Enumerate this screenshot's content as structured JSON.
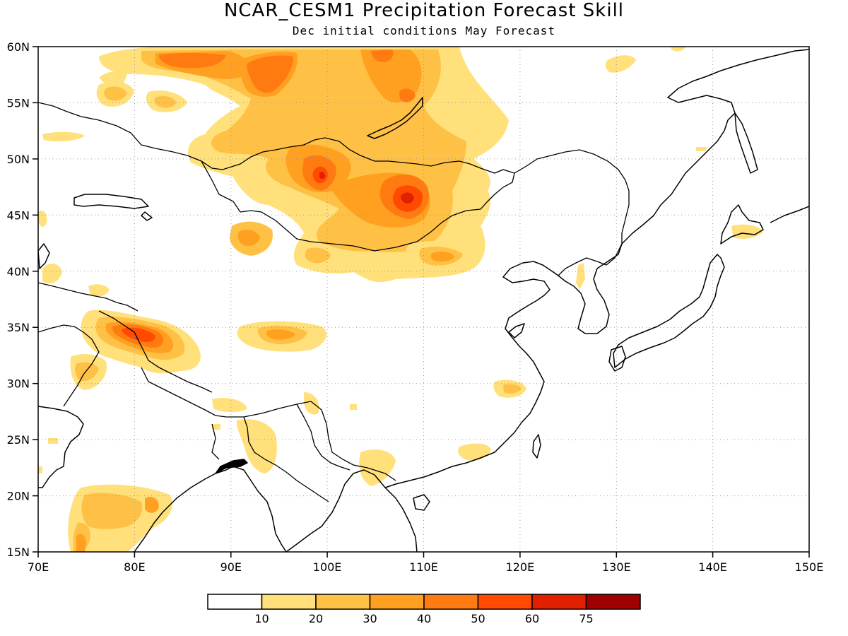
{
  "title": "NCAR_CESM1 Precipitation Forecast Skill",
  "subtitle": "Dec initial conditions   May Forecast",
  "map": {
    "type": "filled-contour map",
    "lon_range": [
      70,
      150
    ],
    "lat_range": [
      15,
      60
    ],
    "x_ticks": [
      "70E",
      "80E",
      "90E",
      "100E",
      "110E",
      "120E",
      "130E",
      "140E",
      "150E"
    ],
    "y_ticks": [
      "15N",
      "20N",
      "25N",
      "30N",
      "35N",
      "40N",
      "45N",
      "50N",
      "55N",
      "60N"
    ],
    "gridlines": "dotted"
  },
  "colorbar": {
    "labels": [
      "10",
      "20",
      "30",
      "40",
      "50",
      "60",
      "75"
    ],
    "colors": [
      "#ffffff",
      "#ffe07a",
      "#ffc145",
      "#ffa020",
      "#ff7a10",
      "#ff4a00",
      "#e22000",
      "#a00000"
    ]
  },
  "chart_data": {
    "type": "heatmap",
    "title": "NCAR_CESM1 Precipitation Forecast Skill",
    "subtitle": "Dec initial conditions   May Forecast",
    "xlim": [
      70,
      150
    ],
    "ylim": [
      15,
      60
    ],
    "levels": [
      10,
      20,
      30,
      40,
      50,
      60,
      75
    ],
    "regions": [
      {
        "lon": 84,
        "lat": 58.5,
        "rx": 7,
        "ry": 1.8,
        "level": 50
      },
      {
        "lon": 91.5,
        "lat": 57.5,
        "rx": 3.5,
        "ry": 2.2,
        "level": 50
      },
      {
        "lon": 106,
        "lat": 58.5,
        "rx": 3,
        "ry": 1.5,
        "level": 50
      },
      {
        "lon": 108.5,
        "lat": 55.5,
        "rx": 1,
        "ry": 0.8,
        "level": 50
      },
      {
        "lon": 99.5,
        "lat": 48.5,
        "rx": 1.5,
        "ry": 1.5,
        "level": 60
      },
      {
        "lon": 108.5,
        "lat": 46,
        "rx": 2,
        "ry": 1.5,
        "level": 60
      },
      {
        "lon": 81.5,
        "lat": 34.2,
        "rx": 2.5,
        "ry": 1.2,
        "level": 60
      },
      {
        "lon": 103,
        "lat": 47,
        "rx": 10,
        "ry": 6,
        "level": 20
      },
      {
        "lon": 96,
        "lat": 34,
        "rx": 3.5,
        "ry": 1.3,
        "level": 30
      },
      {
        "lon": 80,
        "lat": 33.5,
        "rx": 5,
        "ry": 2.2,
        "level": 30
      },
      {
        "lon": 76,
        "lat": 18.5,
        "rx": 4,
        "ry": 3.5,
        "level": 20
      },
      {
        "lon": 119.5,
        "lat": 29.5,
        "rx": 1.5,
        "ry": 1,
        "level": 20
      },
      {
        "lon": 127.5,
        "lat": 39,
        "rx": 0.5,
        "ry": 1.5,
        "level": 10
      },
      {
        "lon": 142.5,
        "lat": 43.5,
        "rx": 2,
        "ry": 0.6,
        "level": 10
      }
    ]
  }
}
